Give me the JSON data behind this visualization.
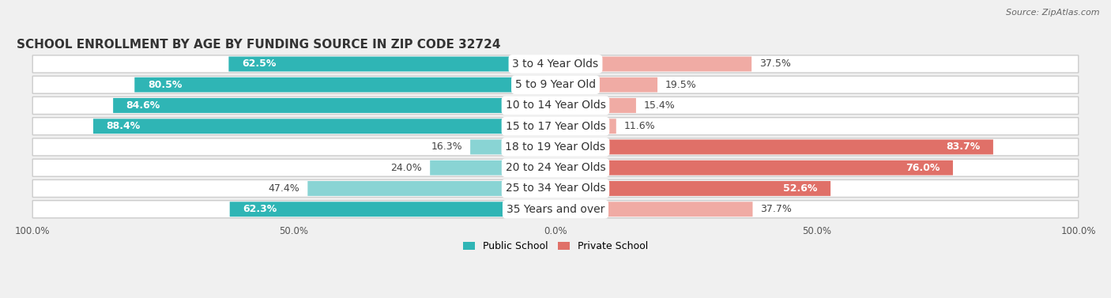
{
  "title": "SCHOOL ENROLLMENT BY AGE BY FUNDING SOURCE IN ZIP CODE 32724",
  "source": "Source: ZipAtlas.com",
  "categories": [
    "3 to 4 Year Olds",
    "5 to 9 Year Old",
    "10 to 14 Year Olds",
    "15 to 17 Year Olds",
    "18 to 19 Year Olds",
    "20 to 24 Year Olds",
    "25 to 34 Year Olds",
    "35 Years and over"
  ],
  "public_values": [
    62.5,
    80.5,
    84.6,
    88.4,
    16.3,
    24.0,
    47.4,
    62.3
  ],
  "private_values": [
    37.5,
    19.5,
    15.4,
    11.6,
    83.7,
    76.0,
    52.6,
    37.7
  ],
  "public_color_strong": "#2fb5b5",
  "public_color_light": "#89d4d4",
  "private_color_strong": "#e07068",
  "private_color_light": "#f0aba4",
  "row_bg_color": "#e8e8e8",
  "background_color": "#f0f0f0",
  "title_fontsize": 11,
  "label_fontsize": 10,
  "value_fontsize": 9,
  "axis_label_fontsize": 8.5,
  "legend_fontsize": 9
}
